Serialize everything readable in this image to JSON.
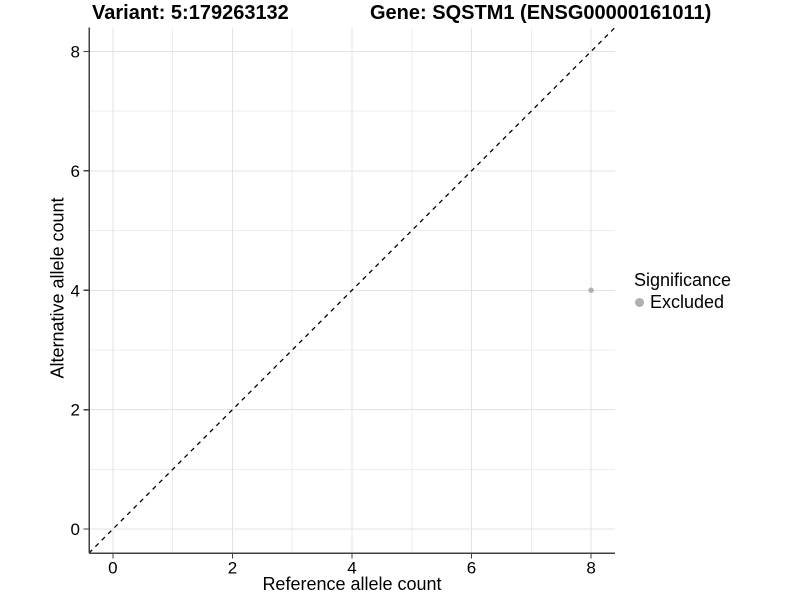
{
  "chart_data": {
    "type": "scatter",
    "title_left": "Variant: 5:179263132",
    "title_right": "Gene: SQSTM1 (ENSG00000161011)",
    "xlabel": "Reference allele count",
    "ylabel": "Alternative allele count",
    "xlim": [
      -0.4,
      8.4
    ],
    "ylim": [
      -0.4,
      8.4
    ],
    "x_major_ticks": [
      0,
      2,
      4,
      6,
      8
    ],
    "y_major_ticks": [
      0,
      2,
      4,
      6,
      8
    ],
    "x_minor_gridlines": [
      1,
      3,
      5,
      7
    ],
    "y_minor_gridlines": [
      1,
      3,
      5,
      7
    ],
    "grid": "on",
    "legend_position": "right",
    "legend_title": "Significance",
    "reference_line": {
      "kind": "identity y=x",
      "style": "dashed",
      "color": "#000000",
      "x": [
        -0.4,
        8.4
      ],
      "y": [
        -0.4,
        8.4
      ]
    },
    "series": [
      {
        "name": "Excluded",
        "color": "#b0b0b0",
        "points": [
          {
            "x": 8,
            "y": 4
          }
        ]
      }
    ]
  },
  "colors": {
    "background": "#ffffff",
    "grid_major": "#e3e3e3",
    "grid_minor": "#eeeeee",
    "axis_line": "#404040",
    "tick_text": "#000000",
    "dashed_line": "#000000"
  }
}
